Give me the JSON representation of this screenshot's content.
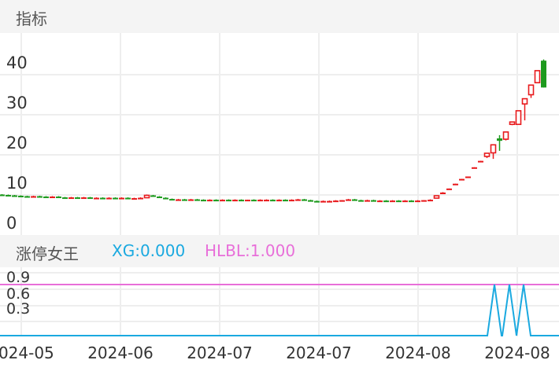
{
  "main_panel": {
    "title": "指标",
    "y_ticks": [
      "40",
      "30",
      "20",
      "10",
      "0"
    ]
  },
  "sub_panel": {
    "title": "涨停女王",
    "xg_label": "XG:0.000",
    "hlbl_label": "HLBL:1.000",
    "y_ticks": [
      "0.9",
      "0.6",
      "0.3"
    ],
    "xg_color": "#1aa9e0",
    "hlbl_color": "#e86fd9"
  },
  "x_ticks": [
    "2024-05",
    "2024-06",
    "2024-07",
    "2024-07",
    "2024-08",
    "2024-08"
  ],
  "colors": {
    "up": "#e8191c",
    "down": "#1e9a1e",
    "grid": "#eeeeee"
  },
  "chart_data": {
    "type": "candlestick",
    "ylim": [
      0,
      45
    ],
    "candles": [
      [
        10.1,
        10.2,
        9.9,
        10.0
      ],
      [
        10.0,
        10.1,
        9.9,
        9.9
      ],
      [
        9.9,
        10.0,
        9.8,
        9.8
      ],
      [
        9.8,
        9.9,
        9.7,
        9.7
      ],
      [
        9.7,
        9.8,
        9.6,
        9.6
      ],
      [
        9.6,
        9.8,
        9.6,
        9.7
      ],
      [
        9.7,
        9.8,
        9.6,
        9.6
      ],
      [
        9.6,
        9.7,
        9.5,
        9.5
      ],
      [
        9.5,
        9.7,
        9.4,
        9.6
      ],
      [
        9.6,
        9.7,
        9.4,
        9.4
      ],
      [
        9.4,
        9.5,
        9.3,
        9.3
      ],
      [
        9.3,
        9.5,
        9.3,
        9.4
      ],
      [
        9.4,
        9.5,
        9.3,
        9.3
      ],
      [
        9.3,
        9.5,
        9.2,
        9.4
      ],
      [
        9.4,
        9.5,
        9.3,
        9.3
      ],
      [
        9.3,
        9.4,
        9.2,
        9.3
      ],
      [
        9.3,
        9.4,
        9.2,
        9.2
      ],
      [
        9.2,
        9.4,
        9.1,
        9.3
      ],
      [
        9.3,
        9.4,
        9.2,
        9.2
      ],
      [
        9.2,
        9.4,
        9.1,
        9.3
      ],
      [
        9.3,
        9.4,
        9.2,
        9.2
      ],
      [
        9.2,
        9.3,
        9.1,
        9.2
      ],
      [
        9.2,
        9.4,
        9.1,
        9.3
      ],
      [
        9.3,
        10.1,
        9.3,
        9.9
      ],
      [
        9.9,
        10.0,
        9.6,
        9.6
      ],
      [
        9.6,
        9.7,
        9.3,
        9.3
      ],
      [
        9.3,
        9.4,
        9.0,
        9.0
      ],
      [
        9.0,
        9.1,
        8.8,
        8.8
      ],
      [
        8.8,
        9.0,
        8.7,
        8.9
      ],
      [
        8.9,
        9.0,
        8.8,
        8.8
      ],
      [
        8.8,
        9.0,
        8.7,
        8.9
      ],
      [
        8.9,
        9.0,
        8.7,
        8.8
      ],
      [
        8.8,
        8.9,
        8.6,
        8.7
      ],
      [
        8.7,
        8.9,
        8.6,
        8.8
      ],
      [
        8.8,
        8.9,
        8.6,
        8.6
      ],
      [
        8.6,
        8.9,
        8.6,
        8.8
      ],
      [
        8.8,
        8.9,
        8.7,
        8.7
      ],
      [
        8.7,
        8.9,
        8.6,
        8.8
      ],
      [
        8.8,
        8.9,
        8.7,
        8.7
      ],
      [
        8.7,
        8.8,
        8.6,
        8.8
      ],
      [
        8.8,
        8.9,
        8.7,
        8.7
      ],
      [
        8.7,
        8.9,
        8.6,
        8.8
      ],
      [
        8.8,
        8.9,
        8.7,
        8.8
      ],
      [
        8.8,
        8.9,
        8.6,
        8.7
      ],
      [
        8.7,
        8.9,
        8.6,
        8.8
      ],
      [
        8.8,
        8.9,
        8.7,
        8.7
      ],
      [
        8.7,
        8.9,
        8.6,
        8.8
      ],
      [
        8.8,
        9.0,
        8.7,
        8.9
      ],
      [
        8.9,
        9.0,
        8.7,
        8.7
      ],
      [
        8.7,
        8.8,
        8.5,
        8.5
      ],
      [
        8.5,
        8.6,
        8.4,
        8.4
      ],
      [
        8.4,
        8.6,
        8.3,
        8.5
      ],
      [
        8.5,
        8.6,
        8.4,
        8.5
      ],
      [
        8.5,
        8.7,
        8.4,
        8.6
      ],
      [
        8.6,
        8.7,
        8.5,
        8.7
      ],
      [
        8.7,
        9.0,
        8.6,
        8.9
      ],
      [
        8.9,
        9.0,
        8.7,
        8.7
      ],
      [
        8.7,
        8.8,
        8.5,
        8.6
      ],
      [
        8.6,
        8.8,
        8.5,
        8.7
      ],
      [
        8.7,
        8.8,
        8.5,
        8.5
      ],
      [
        8.5,
        8.7,
        8.4,
        8.6
      ],
      [
        8.6,
        8.7,
        8.4,
        8.5
      ],
      [
        8.5,
        8.7,
        8.4,
        8.6
      ],
      [
        8.6,
        8.7,
        8.5,
        8.5
      ],
      [
        8.5,
        8.7,
        8.4,
        8.6
      ],
      [
        8.6,
        8.7,
        8.5,
        8.5
      ],
      [
        8.5,
        8.7,
        8.4,
        8.6
      ],
      [
        8.6,
        8.7,
        8.5,
        8.7
      ],
      [
        8.6,
        8.9,
        8.6,
        8.8
      ],
      [
        9.2,
        9.9,
        9.2,
        9.8
      ],
      [
        10.2,
        10.7,
        10.2,
        10.6
      ],
      [
        11.4,
        11.6,
        11.4,
        11.6
      ],
      [
        12.6,
        12.8,
        12.6,
        12.8
      ],
      [
        13.8,
        14.0,
        13.8,
        14.0
      ],
      [
        14.4,
        14.6,
        14.4,
        14.6
      ],
      [
        16.7,
        16.9,
        16.7,
        16.9
      ],
      [
        18.3,
        18.5,
        18.3,
        18.5
      ],
      [
        19.6,
        20.4,
        19.2,
        20.4
      ],
      [
        20.5,
        22.5,
        19.0,
        22.5
      ],
      [
        24.1,
        24.9,
        21.0,
        23.5
      ],
      [
        23.9,
        25.7,
        23.6,
        25.7
      ],
      [
        27.6,
        28.2,
        27.4,
        28.2
      ],
      [
        27.6,
        31.0,
        27.5,
        31.0
      ],
      [
        32.7,
        34.0,
        28.6,
        34.0
      ],
      [
        35.0,
        37.4,
        34.2,
        37.4
      ],
      [
        38.0,
        41.0,
        38.0,
        41.0
      ],
      [
        43.5,
        43.8,
        36.8,
        36.8
      ]
    ],
    "sub_series": {
      "HLBL": 1.0,
      "XG_spikes": [
        {
          "x": 628,
          "v": 1
        },
        {
          "x": 647,
          "v": 1
        },
        {
          "x": 665,
          "v": 1
        }
      ]
    }
  }
}
